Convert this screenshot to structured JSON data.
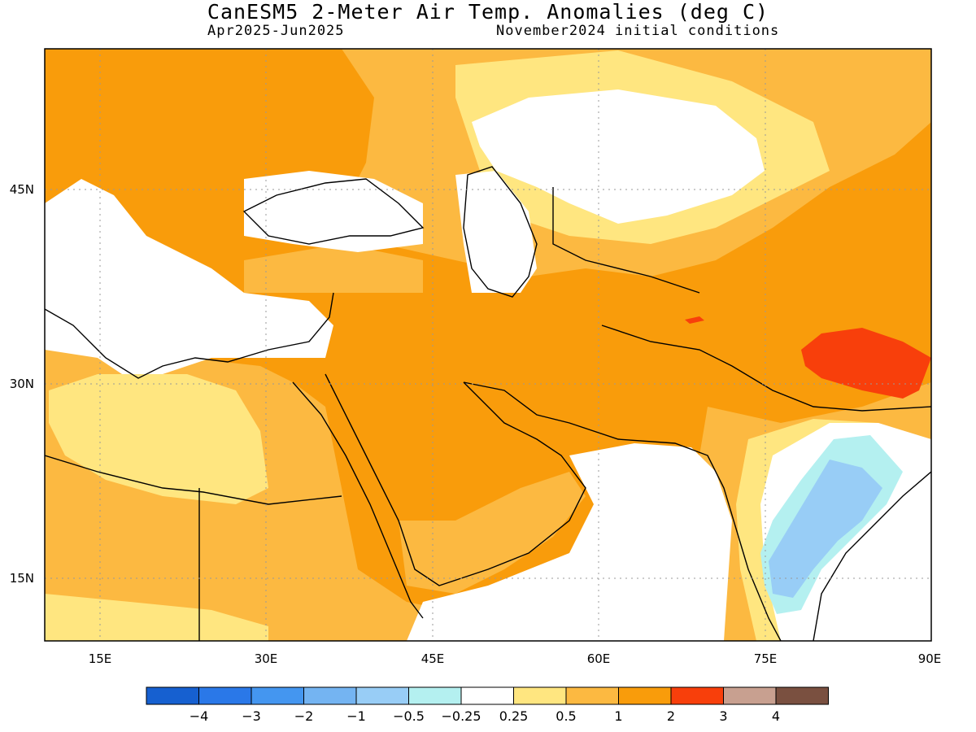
{
  "title": "CanESM5 2-Meter Air Temp. Anomalies (deg C)",
  "period": "Apr2025-Jun2025",
  "init": "November2024 initial conditions",
  "map": {
    "lon_range": [
      10,
      90
    ],
    "lat_range": [
      10,
      57
    ],
    "lon_ticks": [
      "15E",
      "30E",
      "45E",
      "60E",
      "75E",
      "90E"
    ],
    "lat_ticks": [
      "15N",
      "30N",
      "45N"
    ],
    "grid": "dotted"
  },
  "colorbar": {
    "labels": [
      "-4",
      "-3",
      "-2",
      "-1",
      "-0.5",
      "-0.25",
      "0.25",
      "0.5",
      "1",
      "2",
      "3",
      "4"
    ],
    "colors": [
      "#1660d0",
      "#2a78e8",
      "#4496f0",
      "#74b4f2",
      "#98cdf6",
      "#b4f0f0",
      "#ffffff",
      "#ffe680",
      "#fcb941",
      "#f99c0b",
      "#f83f0b",
      "#c8a090",
      "#7a5040"
    ]
  }
}
